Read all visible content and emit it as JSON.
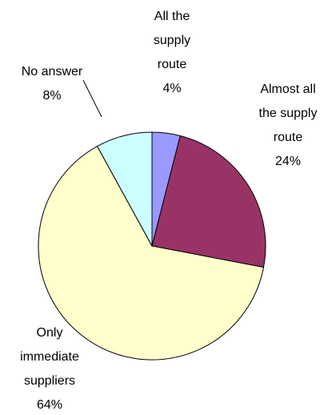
{
  "chart_data": {
    "type": "pie",
    "categories": [
      "All the supply route",
      "Almost all the supply route",
      "Only immediate suppliers",
      "No answer"
    ],
    "values": [
      4,
      24,
      64,
      8
    ],
    "value_labels": [
      "4%",
      "24%",
      "64%",
      "8%"
    ],
    "colors": [
      "#9999ff",
      "#993366",
      "#ffffcc",
      "#ccffff"
    ]
  }
}
